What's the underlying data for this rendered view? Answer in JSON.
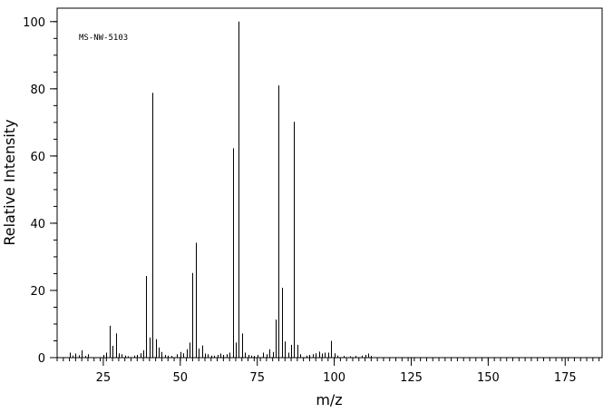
{
  "chart_data": {
    "type": "bar",
    "title": "",
    "annotation": "MS-NW-5103",
    "xlabel": "m/z",
    "ylabel": "Relative Intensity",
    "xlim": [
      10,
      187
    ],
    "ylim": [
      0,
      104
    ],
    "x_ticks": [
      25,
      50,
      75,
      100,
      125,
      150,
      175
    ],
    "y_ticks": [
      0,
      20,
      40,
      60,
      80,
      100
    ],
    "grid": false,
    "color": "#000000",
    "series": [
      {
        "x": [
          14,
          15,
          16,
          17,
          18,
          19,
          20,
          25,
          26,
          27,
          28,
          29,
          30,
          31,
          32,
          33,
          35,
          36,
          37,
          38,
          39,
          40,
          41,
          42,
          43,
          44,
          45,
          46,
          47,
          49,
          50,
          51,
          52,
          53,
          54,
          55,
          56,
          57,
          58,
          59,
          60,
          61,
          62,
          63,
          64,
          65,
          66,
          67,
          68,
          69,
          70,
          71,
          72,
          73,
          74,
          75,
          77,
          78,
          79,
          80,
          81,
          82,
          83,
          84,
          85,
          86,
          87,
          88,
          89,
          91,
          92,
          93,
          94,
          95,
          96,
          97,
          98,
          99,
          100,
          101,
          103,
          105,
          107,
          109,
          110,
          111,
          112
        ],
        "values": [
          1.5,
          0.6,
          1.2,
          0.7,
          2.2,
          0.5,
          1.0,
          0.8,
          1.5,
          9.5,
          3.5,
          7.2,
          1.3,
          1.0,
          0.6,
          0.4,
          0.6,
          0.8,
          1.3,
          2.2,
          24.3,
          6.0,
          78.8,
          5.5,
          3.0,
          1.7,
          0.8,
          0.6,
          0.5,
          1.0,
          1.7,
          1.3,
          2.5,
          4.5,
          25.2,
          34.2,
          2.7,
          3.6,
          1.2,
          1.0,
          0.6,
          0.6,
          0.8,
          1.2,
          0.8,
          1.0,
          1.5,
          62.3,
          4.5,
          100.0,
          7.2,
          1.5,
          0.8,
          0.6,
          0.5,
          0.8,
          1.5,
          1.0,
          2.5,
          1.7,
          11.3,
          81.0,
          20.8,
          4.8,
          1.5,
          3.8,
          70.2,
          3.8,
          1.0,
          0.6,
          0.8,
          1.0,
          1.3,
          1.8,
          1.2,
          1.5,
          1.5,
          5.0,
          1.3,
          0.6,
          0.5,
          0.4,
          0.5,
          0.6,
          0.8,
          1.2,
          0.5
        ]
      }
    ]
  }
}
